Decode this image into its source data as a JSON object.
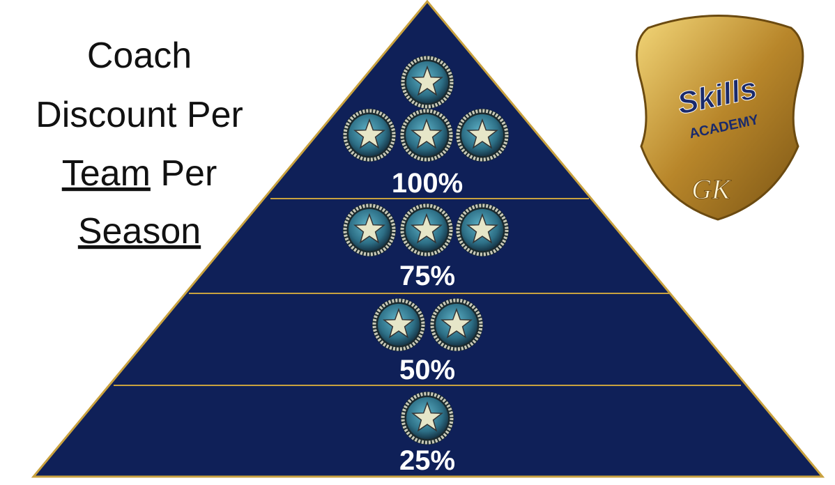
{
  "title": {
    "line1": "Coach",
    "line2": "Discount Per",
    "line3a": "Team",
    "line3b": "Per",
    "line4": "Season"
  },
  "tiers": [
    {
      "label": "100%"
    },
    {
      "label": "75%"
    },
    {
      "label": "50%"
    },
    {
      "label": "25%"
    }
  ],
  "logo": {
    "word": "Skills",
    "sub": "ACADEMY",
    "mark": "GK"
  }
}
